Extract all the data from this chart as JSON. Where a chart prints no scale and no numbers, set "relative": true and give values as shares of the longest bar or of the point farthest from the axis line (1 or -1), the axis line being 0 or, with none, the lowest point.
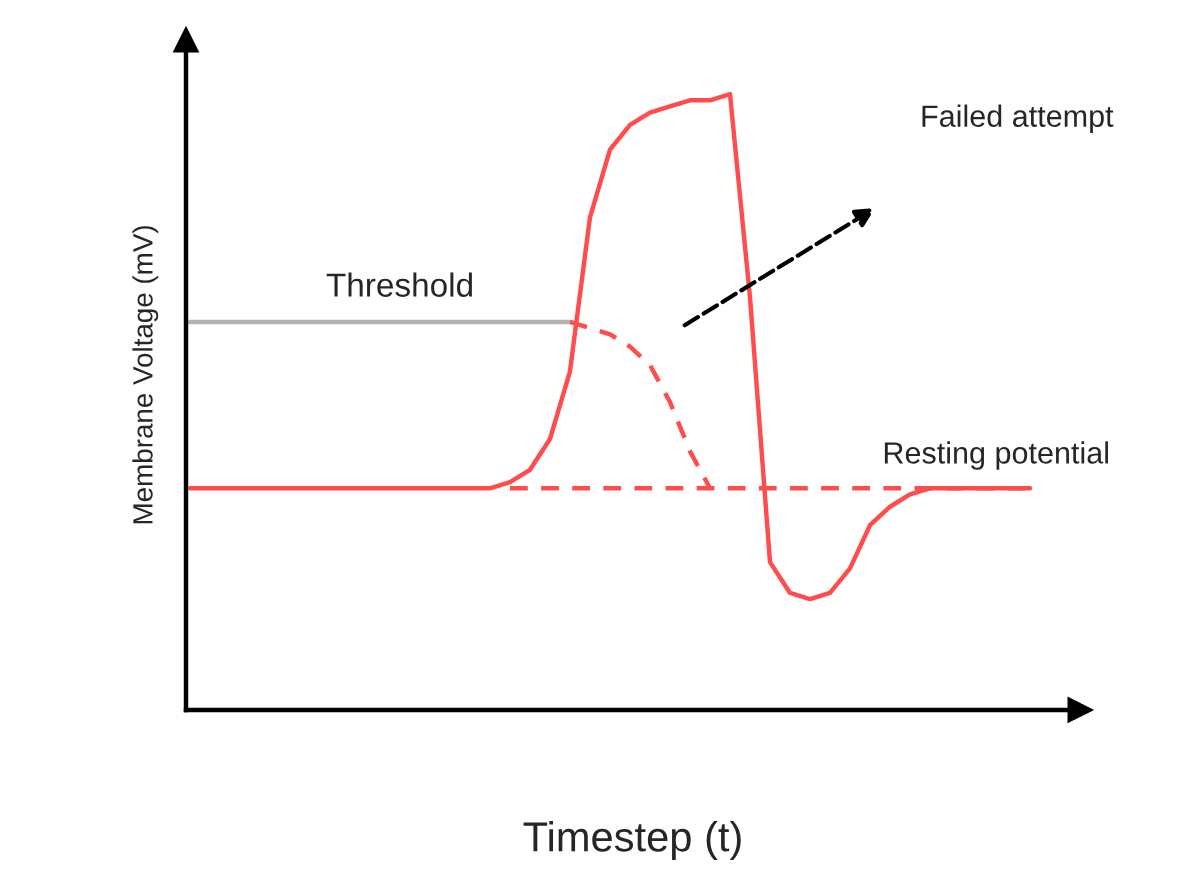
{
  "chart_data": {
    "type": "line",
    "relative": true,
    "xlabel": "Timestep (t)",
    "ylabel": "Membrane Voltage (mV)",
    "marker": "none",
    "annotations": [
      "Failed attempt"
    ],
    "categories": [
      null,
      null,
      null,
      null,
      null,
      null,
      null,
      null,
      null,
      null,
      null,
      null,
      null,
      null,
      null,
      null,
      null,
      null,
      null,
      null,
      null,
      null,
      null,
      null,
      null,
      null,
      null,
      null,
      null,
      null,
      null,
      null,
      null,
      null,
      null,
      null,
      null,
      null,
      null,
      null,
      null,
      null,
      null
    ],
    "series": [
      {
        "color": "#ff4d4d",
        "line_style": "solid",
        "values": [
          0.36,
          0.36,
          0.36,
          0.36,
          0.36,
          0.36,
          0.36,
          0.36,
          0.36,
          0.36,
          0.36,
          0.36,
          0.36,
          0.36,
          0.36,
          0.36,
          0.37,
          0.39,
          0.44,
          0.55,
          0.8,
          0.91,
          0.95,
          0.97,
          0.98,
          0.99,
          0.99,
          1.0,
          0.67,
          0.24,
          0.19,
          0.18,
          0.19,
          0.23,
          0.3,
          0.33,
          0.35,
          0.36,
          0.36,
          0.36,
          0.36,
          0.36,
          0.36
        ]
      },
      {
        "name": "Threshold",
        "color": "#b3b3b3",
        "line_style": "solid",
        "values": [
          0.63,
          0.63,
          0.63,
          0.63,
          0.63,
          0.63,
          0.63,
          0.63,
          0.63,
          0.63,
          0.63,
          0.63,
          0.63,
          0.63,
          0.63,
          0.63,
          0.63,
          0.63,
          0.63,
          0.63,
          null,
          null,
          null,
          null,
          null,
          null,
          null,
          null,
          null,
          null,
          null,
          null,
          null,
          null,
          null,
          null,
          null,
          null,
          null,
          null,
          null,
          null,
          null
        ]
      },
      {
        "color": "#ff4d4d",
        "line_style": "dashed",
        "values": [
          null,
          null,
          null,
          null,
          null,
          null,
          null,
          null,
          null,
          null,
          null,
          null,
          null,
          null,
          null,
          null,
          null,
          null,
          null,
          0.63,
          0.62,
          0.61,
          0.59,
          0.56,
          0.5,
          0.42,
          0.36,
          null,
          null,
          null,
          null,
          null,
          null,
          null,
          null,
          null,
          null,
          null,
          null,
          null,
          null,
          null,
          null
        ]
      },
      {
        "name": "Resting potential",
        "color": "#ff4d4d",
        "line_style": "dashed",
        "values": [
          null,
          null,
          null,
          null,
          null,
          null,
          null,
          null,
          null,
          null,
          null,
          null,
          null,
          null,
          null,
          null,
          0.36,
          0.36,
          0.36,
          0.36,
          0.36,
          0.36,
          0.36,
          0.36,
          0.36,
          0.36,
          0.36,
          0.36,
          0.36,
          0.36,
          0.36,
          0.36,
          0.36,
          0.36,
          0.36,
          0.36,
          0.36,
          0.36,
          0.36,
          0.36,
          0.36,
          0.36,
          0.36
        ]
      }
    ]
  }
}
